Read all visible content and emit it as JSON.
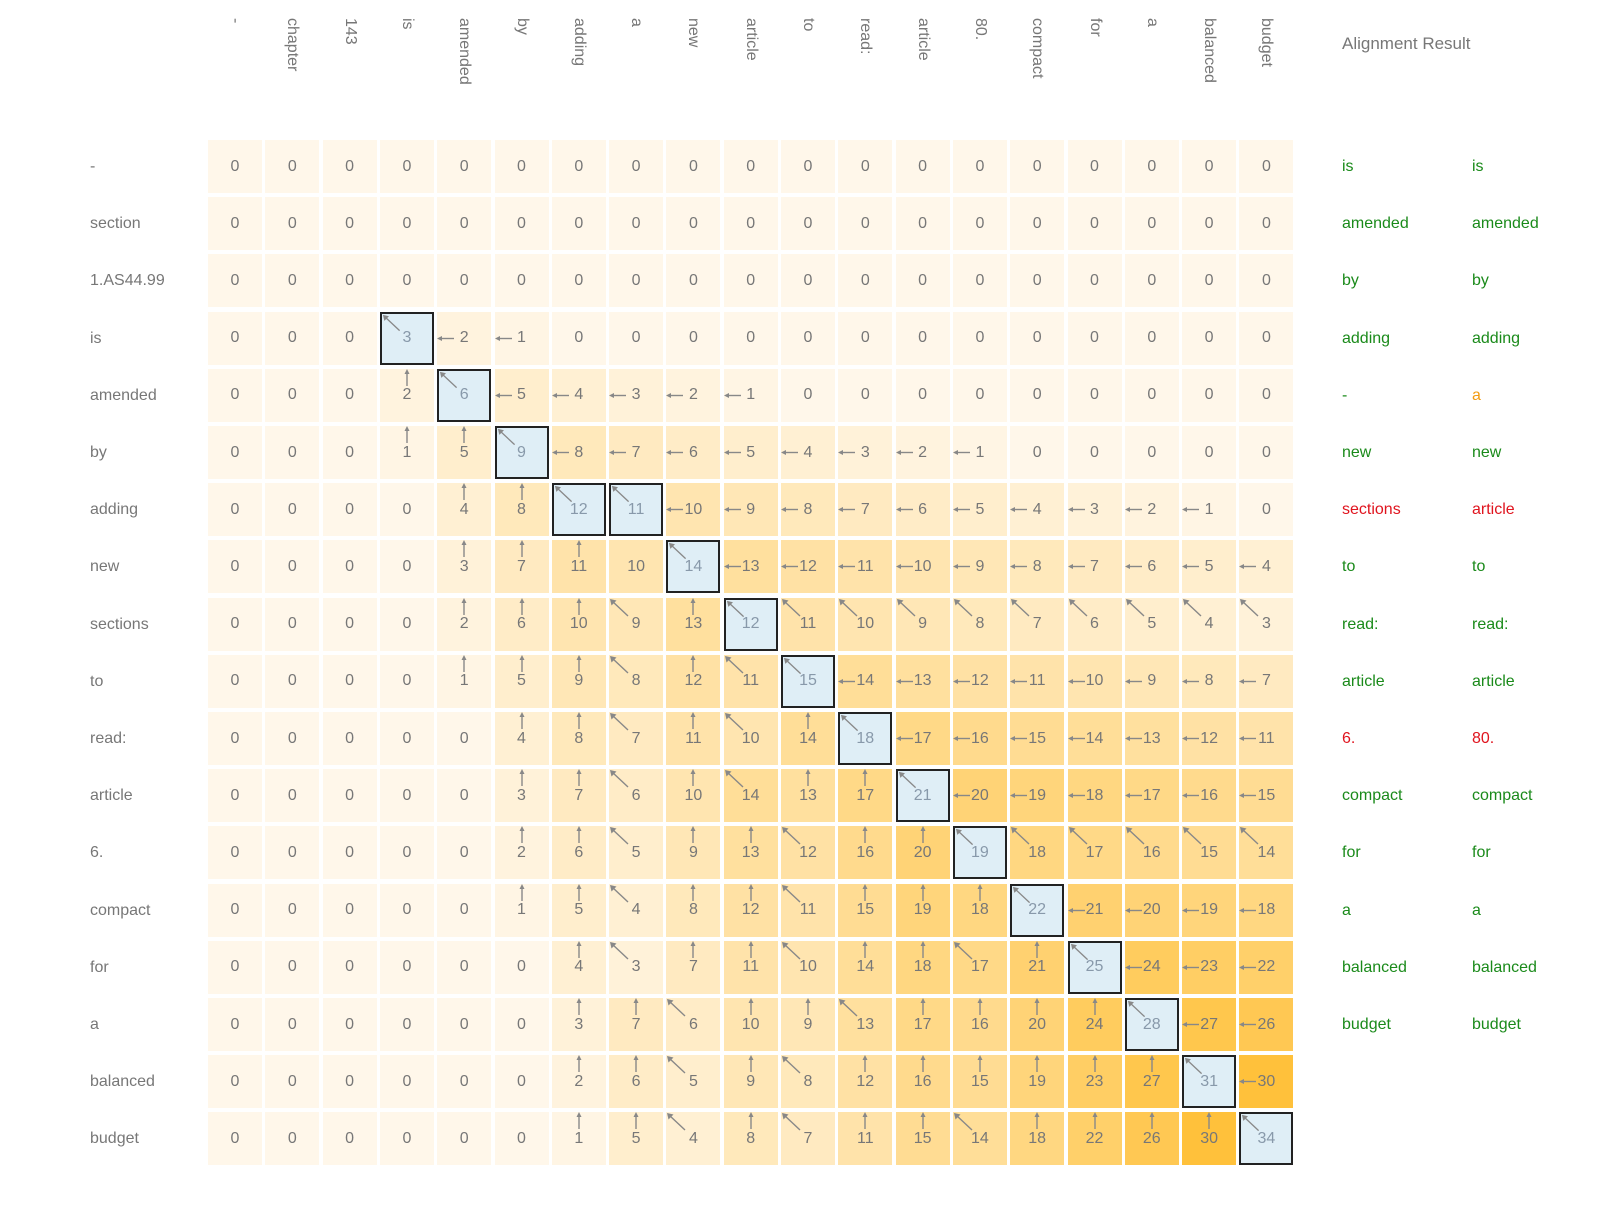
{
  "header": {
    "alignment_title": "Alignment Result"
  },
  "colors": {
    "match": "#1a8a1a",
    "gap": "#f39c12",
    "mismatch": "#e0141e",
    "path_bg": "#dfeef6",
    "path_border": "#222222"
  },
  "columns": [
    "-",
    "chapter",
    "143",
    "is",
    "amended",
    "by",
    "adding",
    "a",
    "new",
    "article",
    "to",
    "read:",
    "article",
    "80.",
    "compact",
    "for",
    "a",
    "balanced",
    "budget"
  ],
  "rows": [
    "-",
    "section",
    "1.AS44.99",
    "is",
    "amended",
    "by",
    "adding",
    "new",
    "sections",
    "to",
    "read:",
    "article",
    "6.",
    "compact",
    "for",
    "a",
    "balanced",
    "budget"
  ],
  "matrix": [
    [
      "0",
      "0",
      "0",
      "0",
      "0",
      "0",
      "0",
      "0",
      "0",
      "0",
      "0",
      "0",
      "0",
      "0",
      "0",
      "0",
      "0",
      "0",
      "0"
    ],
    [
      "0",
      "0",
      "0",
      "0",
      "0",
      "0",
      "0",
      "0",
      "0",
      "0",
      "0",
      "0",
      "0",
      "0",
      "0",
      "0",
      "0",
      "0",
      "0"
    ],
    [
      "0",
      "0",
      "0",
      "0",
      "0",
      "0",
      "0",
      "0",
      "0",
      "0",
      "0",
      "0",
      "0",
      "0",
      "0",
      "0",
      "0",
      "0",
      "0"
    ],
    [
      "0",
      "0",
      "0",
      "3",
      "2",
      "1",
      "0",
      "0",
      "0",
      "0",
      "0",
      "0",
      "0",
      "0",
      "0",
      "0",
      "0",
      "0",
      "0"
    ],
    [
      "0",
      "0",
      "0",
      "2",
      "6",
      "5",
      "4",
      "3",
      "2",
      "1",
      "0",
      "0",
      "0",
      "0",
      "0",
      "0",
      "0",
      "0",
      "0"
    ],
    [
      "0",
      "0",
      "0",
      "1",
      "5",
      "9",
      "8",
      "7",
      "6",
      "5",
      "4",
      "3",
      "2",
      "1",
      "0",
      "0",
      "0",
      "0",
      "0"
    ],
    [
      "0",
      "0",
      "0",
      "0",
      "4",
      "8",
      "12",
      "11",
      "10",
      "9",
      "8",
      "7",
      "6",
      "5",
      "4",
      "3",
      "2",
      "1",
      "0"
    ],
    [
      "0",
      "0",
      "0",
      "0",
      "3",
      "7",
      "11",
      "10",
      "14",
      "13",
      "12",
      "11",
      "10",
      "9",
      "8",
      "7",
      "6",
      "5",
      "4"
    ],
    [
      "0",
      "0",
      "0",
      "0",
      "2",
      "6",
      "10",
      "9",
      "13",
      "12",
      "11",
      "10",
      "9",
      "8",
      "7",
      "6",
      "5",
      "4",
      "3"
    ],
    [
      "0",
      "0",
      "0",
      "0",
      "1",
      "5",
      "9",
      "8",
      "12",
      "11",
      "15",
      "14",
      "13",
      "12",
      "11",
      "10",
      "9",
      "8",
      "7"
    ],
    [
      "0",
      "0",
      "0",
      "0",
      "0",
      "4",
      "8",
      "7",
      "11",
      "10",
      "14",
      "18",
      "17",
      "16",
      "15",
      "14",
      "13",
      "12",
      "11"
    ],
    [
      "0",
      "0",
      "0",
      "0",
      "0",
      "3",
      "7",
      "6",
      "10",
      "14",
      "13",
      "17",
      "21",
      "20",
      "19",
      "18",
      "17",
      "16",
      "15"
    ],
    [
      "0",
      "0",
      "0",
      "0",
      "0",
      "2",
      "6",
      "5",
      "9",
      "13",
      "12",
      "16",
      "20",
      "19",
      "18",
      "17",
      "16",
      "15",
      "14"
    ],
    [
      "0",
      "0",
      "0",
      "0",
      "0",
      "1",
      "5",
      "4",
      "8",
      "12",
      "11",
      "15",
      "19",
      "18",
      "22",
      "21",
      "20",
      "19",
      "18"
    ],
    [
      "0",
      "0",
      "0",
      "0",
      "0",
      "0",
      "4",
      "3",
      "7",
      "11",
      "10",
      "14",
      "18",
      "17",
      "21",
      "25",
      "24",
      "23",
      "22"
    ],
    [
      "0",
      "0",
      "0",
      "0",
      "0",
      "0",
      "3",
      "7",
      "6",
      "10",
      "9",
      "13",
      "17",
      "16",
      "20",
      "24",
      "28",
      "27",
      "26"
    ],
    [
      "0",
      "0",
      "0",
      "0",
      "0",
      "0",
      "2",
      "6",
      "5",
      "9",
      "8",
      "12",
      "16",
      "15",
      "19",
      "23",
      "27",
      "31",
      "30"
    ],
    [
      "0",
      "0",
      "0",
      "0",
      "0",
      "0",
      "1",
      "5",
      "4",
      "8",
      "7",
      "11",
      "15",
      "14",
      "18",
      "22",
      "26",
      "30",
      "34"
    ]
  ],
  "arrows": [
    "...................",
    "...................",
    "...................",
    "...DLL.............",
    "...UDLLLLL.........",
    "...UUDLLLLLLLL.....",
    "....UUDDLLLLLLLLLL.",
    "....UUU.DLLLLLLLLLL",
    "....UUUDUDDDDDDDDDD",
    "....UUUDUDDLLLLLLLL",
    ".....UUDUDUDLLLLLLL",
    ".....UUDUDUUDLLLLLL",
    ".....UUDUUDUUDDDDDD",
    ".....UUDUUDUUUDLLLL",
    "......UDUUDUUDUDLLL",
    "......UUDUUDUUUUDLL",
    "......UUDUDUUUUUUDL",
    "......UUDUDUUDUUUUD"
  ],
  "path": [
    [
      3,
      3
    ],
    [
      4,
      4
    ],
    [
      5,
      5
    ],
    [
      6,
      6
    ],
    [
      6,
      7
    ],
    [
      7,
      8
    ],
    [
      8,
      9
    ],
    [
      9,
      10
    ],
    [
      10,
      11
    ],
    [
      11,
      12
    ],
    [
      12,
      13
    ],
    [
      13,
      14
    ],
    [
      14,
      15
    ],
    [
      15,
      16
    ],
    [
      16,
      17
    ],
    [
      17,
      18
    ]
  ],
  "alignment": {
    "left": [
      "is",
      "amended",
      "by",
      "adding",
      "-",
      "new",
      "sections",
      "to",
      "read:",
      "article",
      "6.",
      "compact",
      "for",
      "a",
      "balanced",
      "budget"
    ],
    "right": [
      "is",
      "amended",
      "by",
      "adding",
      "a",
      "new",
      "article",
      "to",
      "read:",
      "article",
      "80.",
      "compact",
      "for",
      "a",
      "balanced",
      "budget"
    ],
    "status": [
      "match",
      "match",
      "match",
      "match",
      "gap",
      "match",
      "mismatch",
      "match",
      "match",
      "match",
      "mismatch",
      "match",
      "match",
      "match",
      "match",
      "match"
    ]
  }
}
